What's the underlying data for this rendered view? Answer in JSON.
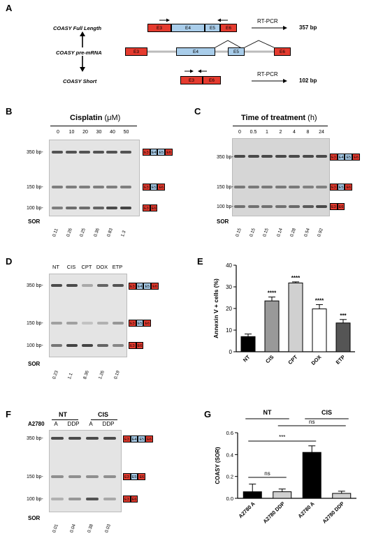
{
  "panels": {
    "A": "A",
    "B": "B",
    "C": "C",
    "D": "D",
    "E": "E",
    "F": "F",
    "G": "G"
  },
  "panelA": {
    "full_length": "COASY Full Length",
    "pre_mrna": "COASY pre-mRNA",
    "short": "COASY Short",
    "rtpcr": "RT-PCR",
    "bp_full": "357 bp",
    "bp_short": "102 bp",
    "exons": {
      "e3": "E3",
      "e4": "E4",
      "e5": "E5",
      "e6": "E6"
    }
  },
  "panelB": {
    "title": "Cisplatin",
    "unit": "(μM)",
    "lanes": [
      "0",
      "10",
      "20",
      "30",
      "40",
      "50"
    ],
    "sor_label": "SOR",
    "sor": [
      "0.11",
      "0.26",
      "0.25",
      "0.36",
      "0.83",
      "1.3"
    ]
  },
  "panelC": {
    "title": "Time of treatment",
    "unit": "(h)",
    "lanes": [
      "0",
      "0.5",
      "1",
      "2",
      "4",
      "8",
      "24"
    ],
    "sor_label": "SOR",
    "sor": [
      "0.15",
      "0.15",
      "0.15",
      "0.14",
      "0.28",
      "0.54",
      "0.92"
    ]
  },
  "panelD": {
    "lanes": [
      "NT",
      "CIS",
      "CPT",
      "DOX",
      "ETP"
    ],
    "sor_label": "SOR",
    "sor": [
      "0.23",
      "1.1",
      "8.36",
      "1.26",
      "0.19"
    ]
  },
  "panelF": {
    "cell": "A2780",
    "groups": [
      "NT",
      "CIS"
    ],
    "lanes": [
      "A",
      "DDP",
      "A",
      "DDP"
    ],
    "sor_label": "SOR",
    "sor": [
      "0.01",
      "0.04",
      "0.38",
      "0.03"
    ]
  },
  "markers": {
    "m350": "350 bp-",
    "m150": "150 bp-",
    "m100": "100 bp-"
  },
  "colors": {
    "exon_red": "#e53b2f",
    "exon_blue": "#a9cdea"
  },
  "chart_data": [
    {
      "type": "bar",
      "panel": "E",
      "categories": [
        "NT",
        "CIS",
        "CPT",
        "DOX",
        "ETP"
      ],
      "values": [
        7,
        23.5,
        31.8,
        19.8,
        13.3
      ],
      "errors": [
        1.2,
        1.8,
        0.5,
        2.0,
        1.6
      ],
      "significance": [
        "",
        "****",
        "****",
        "****",
        "***"
      ],
      "ylabel": "Annexin V + cells (%)",
      "ylim": [
        0,
        40
      ],
      "yticks": [
        "0",
        "10",
        "20",
        "30",
        "40"
      ],
      "bar_colors": [
        "#000000",
        "#999999",
        "#d0d0d0",
        "#ffffff",
        "#555555"
      ]
    },
    {
      "type": "bar",
      "panel": "G",
      "categories": [
        "A2780 A",
        "A2780 DDP",
        "A2780 A",
        "A2780 DDP"
      ],
      "values": [
        0.06,
        0.06,
        0.42,
        0.045
      ],
      "errors": [
        0.07,
        0.025,
        0.06,
        0.02
      ],
      "ylabel": "COASY (SOR)",
      "ylim": [
        0,
        0.6
      ],
      "yticks": [
        "0.0",
        "0.2",
        "0.4",
        "0.6"
      ],
      "group_labels": [
        "NT",
        "CIS"
      ],
      "comparisons": [
        "ns",
        "***",
        "ns"
      ],
      "bar_colors": [
        "#000000",
        "#d0d0d0",
        "#000000",
        "#d0d0d0"
      ]
    }
  ]
}
